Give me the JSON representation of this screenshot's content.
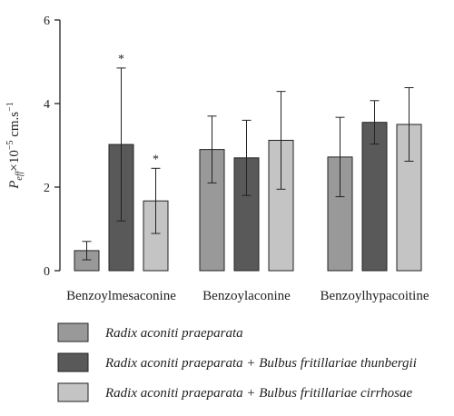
{
  "chart_data": {
    "type": "bar",
    "title": "",
    "xlabel": "",
    "ylabel": {
      "base": "P",
      "subscript": "eff",
      "middle": "×10",
      "superscript_exp": "−5",
      "unit": " cm.s",
      "superscript_unit": "−1"
    },
    "ylim": [
      0,
      6
    ],
    "yticks": [
      "0",
      "2",
      "4",
      "6"
    ],
    "grid": false,
    "categories": [
      "Benzoylmesaconine",
      "Benzoylaconine",
      "Benzoylhypacoitine"
    ],
    "series": [
      {
        "name": "Radix aconiti praeparata",
        "color": "#999999",
        "values": [
          0.48,
          2.9,
          2.72
        ],
        "errors": [
          0.22,
          0.8,
          0.95
        ],
        "sig": [
          "",
          "",
          ""
        ]
      },
      {
        "name": "Radix aconiti praeparata + Bulbus fritillariae thunbergii",
        "color": "#595959",
        "values": [
          3.02,
          2.7,
          3.55
        ],
        "errors": [
          1.83,
          0.9,
          0.52
        ],
        "sig": [
          "*",
          "",
          ""
        ]
      },
      {
        "name": "Radix aconiti praeparata + Bulbus fritillariae cirrhosae",
        "color": "#c4c4c4",
        "values": [
          1.67,
          3.12,
          3.5
        ],
        "errors": [
          0.78,
          1.17,
          0.88
        ],
        "sig": [
          "*",
          "",
          ""
        ]
      }
    ],
    "legend_position": "bottom"
  }
}
